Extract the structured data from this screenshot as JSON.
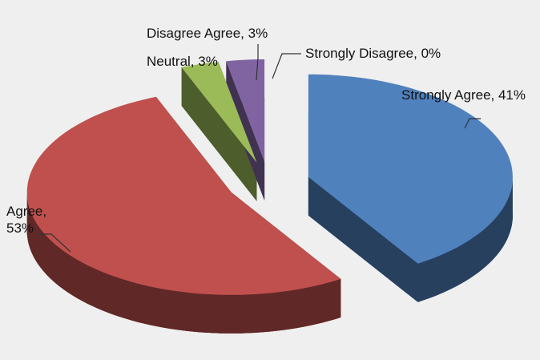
{
  "chart_data": {
    "type": "pie",
    "pie_style": "3d-exploded",
    "labels": [
      "Strongly Agree, 41%",
      "Agree, 53%",
      "Neutral, 3%",
      "Disagree Agree, 3%",
      "Strongly Disagree, 0%"
    ],
    "values": [
      41,
      53,
      3,
      3,
      0
    ],
    "colors": [
      "#4f81bd",
      "#c0504d",
      "#9bbb59",
      "#8064a2",
      "#a6a6a6"
    ]
  }
}
